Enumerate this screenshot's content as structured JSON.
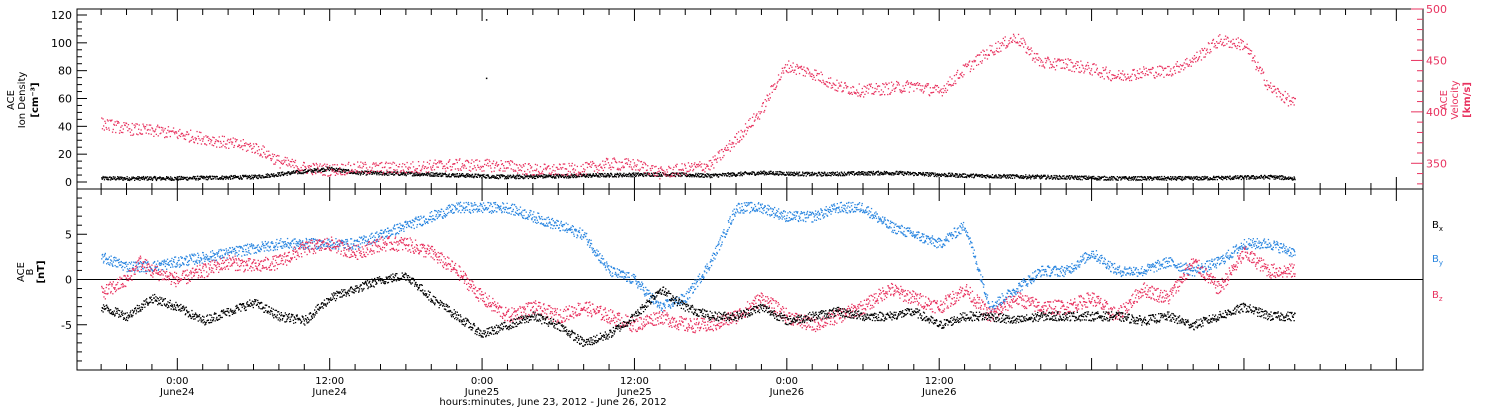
{
  "chart_data": [
    {
      "type": "scatter",
      "panel": "top",
      "ylabel_left": [
        "ACE",
        "Ion Density",
        "[cm⁻³]"
      ],
      "ylabel_right": [
        "ACE",
        "Velocity",
        "[km/s]"
      ],
      "ylim_left": [
        0,
        120
      ],
      "yticks_left": [
        "0",
        "20",
        "40",
        "60",
        "80",
        "100",
        "120"
      ],
      "ylim_right": [
        325,
        500
      ],
      "yticks_right": [
        "350",
        "400",
        "450",
        "500"
      ],
      "colors": {
        "density": "#000000",
        "velocity": "#e8325f"
      },
      "series": [
        {
          "axis": "left",
          "color": "#000000",
          "values": [
            [
              -6,
              3
            ],
            [
              0,
              3
            ],
            [
              6,
              4
            ],
            [
              10,
              8
            ],
            [
              12,
              10
            ],
            [
              14,
              7
            ],
            [
              20,
              6
            ],
            [
              26,
              4
            ],
            [
              32,
              5
            ],
            [
              38,
              6
            ],
            [
              42,
              5
            ],
            [
              46,
              7
            ],
            [
              50,
              6
            ],
            [
              56,
              7
            ],
            [
              62,
              5
            ],
            [
              68,
              4
            ],
            [
              74,
              3
            ],
            [
              80,
              3
            ],
            [
              86,
              4
            ],
            [
              88,
              3
            ]
          ]
        },
        {
          "axis": "right",
          "color": "#e8325f",
          "values": [
            [
              -6,
              389
            ],
            [
              -4,
              384
            ],
            [
              -1,
              381
            ],
            [
              0,
              379
            ],
            [
              2,
              375
            ],
            [
              4,
              370
            ],
            [
              6,
              366
            ],
            [
              7,
              360
            ],
            [
              8,
              352
            ],
            [
              10,
              346
            ],
            [
              12,
              344
            ],
            [
              14,
              346
            ],
            [
              16,
              346
            ],
            [
              18,
              346
            ],
            [
              20,
              348
            ],
            [
              22,
              349
            ],
            [
              26,
              348
            ],
            [
              28,
              344
            ],
            [
              30,
              344
            ],
            [
              32,
              345
            ],
            [
              34,
              350
            ],
            [
              36,
              349
            ],
            [
              37,
              346
            ],
            [
              38,
              341
            ],
            [
              40,
              345
            ],
            [
              42,
              349
            ],
            [
              44,
              374
            ],
            [
              46,
              402
            ],
            [
              47,
              427
            ],
            [
              48,
              445
            ],
            [
              50,
              438
            ],
            [
              52,
              425
            ],
            [
              54,
              421
            ],
            [
              58,
              426
            ],
            [
              60,
              420
            ],
            [
              62,
              442
            ],
            [
              64,
              460
            ],
            [
              66,
              473
            ],
            [
              68,
              448
            ],
            [
              70,
              447
            ],
            [
              72,
              442
            ],
            [
              74,
              435
            ],
            [
              76,
              439
            ],
            [
              78,
              440
            ],
            [
              80,
              451
            ],
            [
              82,
              470
            ],
            [
              84,
              466
            ],
            [
              86,
              424
            ],
            [
              88,
              408
            ]
          ]
        }
      ]
    },
    {
      "type": "scatter",
      "panel": "bottom",
      "ylabel": [
        "ACE",
        "B",
        "[nT]"
      ],
      "ylim": [
        -10,
        10
      ],
      "yticks": [
        "-5",
        "0",
        "5"
      ],
      "zero_line": true,
      "series": [
        {
          "name": "Bx",
          "color": "#000000",
          "values": [
            [
              -6,
              -3
            ],
            [
              -4,
              -4
            ],
            [
              -2,
              -2
            ],
            [
              0,
              -3
            ],
            [
              2,
              -4.5
            ],
            [
              4,
              -3.5
            ],
            [
              6,
              -2.5
            ],
            [
              8,
              -4
            ],
            [
              10,
              -4.5
            ],
            [
              12,
              -2
            ],
            [
              14,
              -1
            ],
            [
              16,
              0
            ],
            [
              18,
              0.5
            ],
            [
              20,
              -2
            ],
            [
              22,
              -4
            ],
            [
              24,
              -6
            ],
            [
              26,
              -5
            ],
            [
              28,
              -4
            ],
            [
              30,
              -5
            ],
            [
              32,
              -7
            ],
            [
              34,
              -6
            ],
            [
              36,
              -4
            ],
            [
              38,
              -1
            ],
            [
              40,
              -3
            ],
            [
              42,
              -4
            ],
            [
              44,
              -4
            ],
            [
              46,
              -3
            ],
            [
              48,
              -4.5
            ],
            [
              50,
              -4
            ],
            [
              52,
              -3.5
            ],
            [
              54,
              -4
            ],
            [
              56,
              -4
            ],
            [
              58,
              -3.5
            ],
            [
              60,
              -5
            ],
            [
              62,
              -4
            ],
            [
              64,
              -4
            ],
            [
              66,
              -4.5
            ],
            [
              68,
              -4
            ],
            [
              70,
              -4
            ],
            [
              72,
              -4
            ],
            [
              74,
              -4
            ],
            [
              76,
              -4.5
            ],
            [
              78,
              -4
            ],
            [
              80,
              -5
            ],
            [
              82,
              -4
            ],
            [
              84,
              -3
            ],
            [
              86,
              -4
            ],
            [
              88,
              -4
            ]
          ]
        },
        {
          "name": "By",
          "color": "#2a86e0",
          "values": [
            [
              -6,
              2.5
            ],
            [
              -4,
              1.5
            ],
            [
              -2,
              1.5
            ],
            [
              0,
              2
            ],
            [
              2,
              2.5
            ],
            [
              4,
              3
            ],
            [
              6,
              3.5
            ],
            [
              8,
              4
            ],
            [
              10,
              4
            ],
            [
              12,
              4
            ],
            [
              14,
              4
            ],
            [
              16,
              5
            ],
            [
              18,
              6
            ],
            [
              20,
              7
            ],
            [
              22,
              8
            ],
            [
              24,
              8
            ],
            [
              26,
              8
            ],
            [
              28,
              7
            ],
            [
              30,
              6
            ],
            [
              32,
              5
            ],
            [
              34,
              1
            ],
            [
              36,
              0
            ],
            [
              38,
              -3
            ],
            [
              40,
              -2
            ],
            [
              42,
              2
            ],
            [
              44,
              8
            ],
            [
              46,
              8
            ],
            [
              48,
              7
            ],
            [
              50,
              7
            ],
            [
              52,
              8
            ],
            [
              54,
              8
            ],
            [
              56,
              6
            ],
            [
              58,
              5
            ],
            [
              60,
              4
            ],
            [
              62,
              6
            ],
            [
              64,
              -3
            ],
            [
              66,
              -1
            ],
            [
              68,
              1
            ],
            [
              70,
              1
            ],
            [
              72,
              3
            ],
            [
              74,
              1
            ],
            [
              76,
              1
            ],
            [
              78,
              2
            ],
            [
              80,
              1
            ],
            [
              82,
              2
            ],
            [
              84,
              4
            ],
            [
              86,
              4
            ],
            [
              88,
              3
            ]
          ]
        },
        {
          "name": "Bz",
          "color": "#e8325f",
          "values": [
            [
              -6,
              -1.5
            ],
            [
              -4,
              0
            ],
            [
              -3,
              2
            ],
            [
              -2,
              1
            ],
            [
              0,
              0
            ],
            [
              2,
              1
            ],
            [
              4,
              2
            ],
            [
              6,
              1.5
            ],
            [
              8,
              2
            ],
            [
              10,
              3.5
            ],
            [
              12,
              4
            ],
            [
              14,
              3
            ],
            [
              16,
              4
            ],
            [
              18,
              4
            ],
            [
              20,
              3
            ],
            [
              22,
              1
            ],
            [
              24,
              -2
            ],
            [
              26,
              -4
            ],
            [
              28,
              -3
            ],
            [
              30,
              -4
            ],
            [
              32,
              -3
            ],
            [
              34,
              -4
            ],
            [
              36,
              -5
            ],
            [
              38,
              -4
            ],
            [
              40,
              -5
            ],
            [
              42,
              -5
            ],
            [
              44,
              -4
            ],
            [
              46,
              -2
            ],
            [
              48,
              -4
            ],
            [
              50,
              -5
            ],
            [
              52,
              -4
            ],
            [
              54,
              -3
            ],
            [
              56,
              -1
            ],
            [
              58,
              -2
            ],
            [
              60,
              -3
            ],
            [
              62,
              -1
            ],
            [
              64,
              -4
            ],
            [
              66,
              -2
            ],
            [
              68,
              -3
            ],
            [
              70,
              -3
            ],
            [
              72,
              -2
            ],
            [
              74,
              -4
            ],
            [
              76,
              -1
            ],
            [
              78,
              -2
            ],
            [
              80,
              2
            ],
            [
              82,
              -1
            ],
            [
              84,
              3
            ],
            [
              86,
              1
            ],
            [
              88,
              1
            ]
          ]
        }
      ],
      "legend": [
        {
          "label": "B",
          "sub": "x",
          "color": "#000000"
        },
        {
          "label": "B",
          "sub": "y",
          "color": "#2a86e0"
        },
        {
          "label": "B",
          "sub": "z",
          "color": "#e8325f"
        }
      ]
    }
  ],
  "x_axis": {
    "xlim": [
      -7.9,
      98.1
    ],
    "ticks": [
      {
        "hours": 0,
        "time": "0:00",
        "day": "June24"
      },
      {
        "hours": 12,
        "time": "12:00",
        "day": "June24"
      },
      {
        "hours": 24,
        "time": "0:00",
        "day": "June25"
      },
      {
        "hours": 36,
        "time": "12:00",
        "day": "June25"
      },
      {
        "hours": 48,
        "time": "0:00",
        "day": "June26"
      },
      {
        "hours": 60,
        "time": "12:00",
        "day": "June26"
      }
    ],
    "title": "hours:minutes, June 23, 2012 - June 26, 2012"
  },
  "sporadic_points": [
    [
      24.3,
      117
    ],
    [
      24.3,
      75
    ]
  ]
}
